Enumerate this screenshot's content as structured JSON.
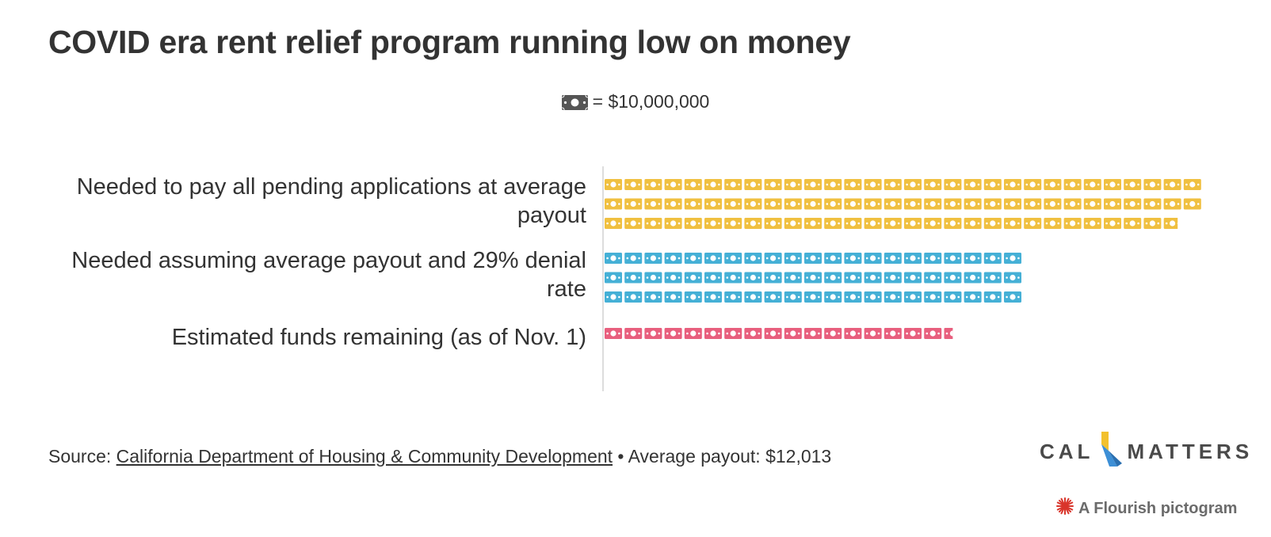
{
  "title": "COVID era rent relief program running low on money",
  "key": {
    "icon": "dollar-bill-icon",
    "text": "= $10,000,000",
    "unit_value": 10000000
  },
  "chart_data": {
    "type": "pictogram",
    "unit": 10000000,
    "categories": [
      "Needed to pay all pending applications at average payout",
      "Needed assuming average payout and 29% denial rate",
      "Estimated funds remaining (as of Nov. 1)"
    ],
    "values": [
      888000000,
      630000000,
      175000000
    ],
    "icons_per_row": 30,
    "series_colors": [
      "#f0c040",
      "#45b0d6",
      "#e85f7e"
    ],
    "axis": "none",
    "legend": "top-center"
  },
  "source": {
    "prefix": "Source: ",
    "link_text": "California Department of Housing & Community Development",
    "suffix": " • Average payout: $12,013"
  },
  "logo": {
    "left": "CAL",
    "right": "MATTERS"
  },
  "credit": "A Flourish pictogram"
}
